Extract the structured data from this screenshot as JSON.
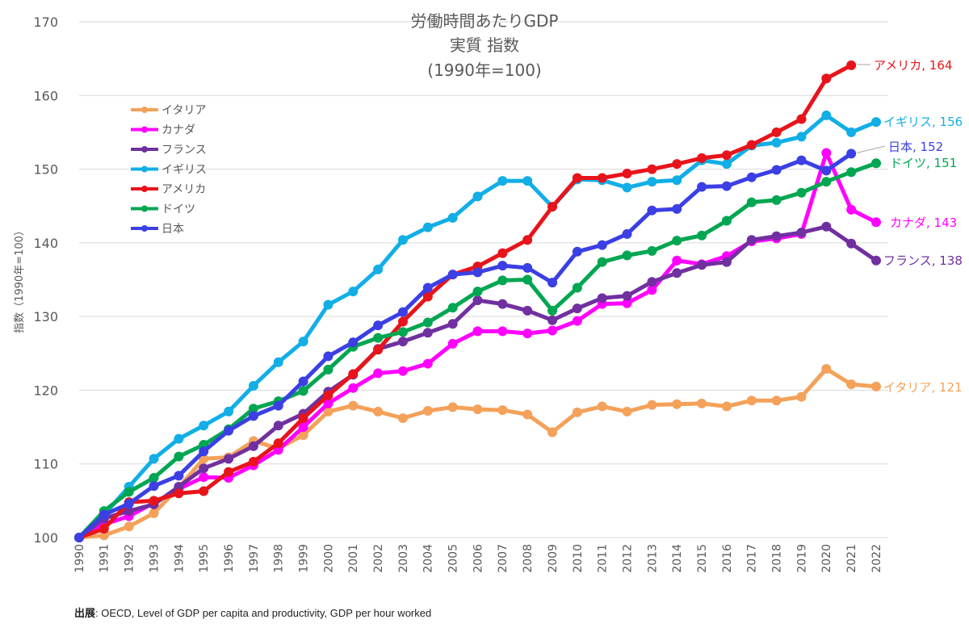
{
  "chart_data": {
    "type": "line",
    "title": "労働時間あたりGDP",
    "subtitle": "実質 指数",
    "subtitle2": "(1990年=100)",
    "xlabel": "",
    "ylabel": "指数（1990年=100）",
    "ylim": [
      100,
      170
    ],
    "yticks": [
      100,
      110,
      120,
      130,
      140,
      150,
      160,
      170
    ],
    "grid": true,
    "legend_position": "top-left",
    "x": [
      "1990",
      "1991",
      "1992",
      "1993",
      "1994",
      "1995",
      "1996",
      "1997",
      "1998",
      "1999",
      "2000",
      "2001",
      "2002",
      "2003",
      "2004",
      "2005",
      "2006",
      "2007",
      "2008",
      "2009",
      "2010",
      "2011",
      "2012",
      "2013",
      "2014",
      "2015",
      "2016",
      "2017",
      "2018",
      "2019",
      "2020",
      "2021",
      "2022"
    ],
    "series": [
      {
        "name": "イタリア",
        "color": "#f4a15a",
        "values": [
          100,
          100.3,
          101.5,
          103.3,
          106.8,
          110.7,
          110.9,
          113.1,
          112.1,
          113.9,
          117.1,
          117.9,
          117.1,
          116.2,
          117.2,
          117.7,
          117.4,
          117.3,
          116.7,
          114.3,
          117.0,
          117.8,
          117.1,
          118.0,
          118.1,
          118.2,
          117.8,
          118.6,
          118.6,
          119.1,
          122.9,
          120.8,
          120.5
        ],
        "end_label": "イタリア, 121"
      },
      {
        "name": "カナダ",
        "color": "#ff00ff",
        "values": [
          100,
          101.8,
          102.9,
          104.7,
          106.6,
          108.2,
          108.1,
          109.8,
          111.9,
          115.0,
          118.2,
          120.3,
          122.3,
          122.6,
          123.6,
          126.3,
          128.0,
          128.0,
          127.7,
          128.1,
          129.4,
          131.7,
          131.8,
          133.6,
          137.6,
          137.1,
          138.2,
          140.2,
          140.6,
          141.2,
          152.2,
          144.5,
          142.8
        ],
        "end_label": "カナダ, 143"
      },
      {
        "name": "フランス",
        "color": "#7030a0",
        "values": [
          100,
          102.6,
          103.6,
          104.5,
          106.9,
          109.4,
          110.7,
          112.4,
          115.2,
          116.8,
          119.8,
          122.1,
          125.6,
          126.6,
          127.8,
          129.0,
          132.2,
          131.7,
          130.8,
          129.5,
          131.1,
          132.5,
          132.8,
          134.7,
          135.9,
          137.0,
          137.4,
          140.4,
          140.9,
          141.4,
          142.2,
          139.9,
          137.6
        ],
        "end_label": "フランス, 138"
      },
      {
        "name": "イギリス",
        "color": "#12aee6",
        "values": [
          100,
          103.1,
          106.9,
          110.7,
          113.4,
          115.2,
          117.1,
          120.6,
          123.8,
          126.6,
          131.6,
          133.4,
          136.4,
          140.4,
          142.1,
          143.4,
          146.3,
          148.4,
          148.4,
          144.9,
          148.6,
          148.5,
          147.5,
          148.3,
          148.5,
          151.2,
          150.7,
          153.2,
          153.6,
          154.4,
          157.3,
          155.0,
          156.4
        ],
        "end_label": "イギリス, 156"
      },
      {
        "name": "アメリカ",
        "color": "#e8141b",
        "values": [
          100,
          101.2,
          104.8,
          105.0,
          106.0,
          106.3,
          108.9,
          110.3,
          112.8,
          116.2,
          119.3,
          122.2,
          125.5,
          129.3,
          132.7,
          135.7,
          136.8,
          138.6,
          140.4,
          144.9,
          148.8,
          148.8,
          149.4,
          150.0,
          150.7,
          151.5,
          151.9,
          153.3,
          155.0,
          156.8,
          162.3,
          164.1,
          null
        ],
        "end_label": "アメリカ, 164"
      },
      {
        "name": "ドイツ",
        "color": "#00a651",
        "values": [
          100,
          103.6,
          106.2,
          108.1,
          111.0,
          112.6,
          114.7,
          117.5,
          118.5,
          119.9,
          122.8,
          125.9,
          127.1,
          127.9,
          129.2,
          131.2,
          133.4,
          134.9,
          135.0,
          130.8,
          133.9,
          137.4,
          138.3,
          138.9,
          140.3,
          141.0,
          143.0,
          145.5,
          145.8,
          146.8,
          148.3,
          149.6,
          150.8
        ],
        "end_label": "ドイツ, 151"
      },
      {
        "name": "日本",
        "color": "#3b3fe4",
        "values": [
          100,
          103.1,
          104.6,
          107.0,
          108.4,
          111.7,
          114.5,
          116.5,
          117.9,
          121.2,
          124.6,
          126.5,
          128.8,
          130.6,
          133.9,
          135.7,
          136.0,
          136.9,
          136.6,
          134.6,
          138.8,
          139.7,
          141.2,
          144.4,
          144.6,
          147.6,
          147.7,
          148.9,
          149.9,
          151.2,
          149.8,
          152.1,
          null
        ],
        "end_label": "日本, 152"
      }
    ]
  },
  "source": {
    "label": "出展",
    "text": ": OECD, Level of GDP per capita and productivity, GDP per hour worked"
  }
}
